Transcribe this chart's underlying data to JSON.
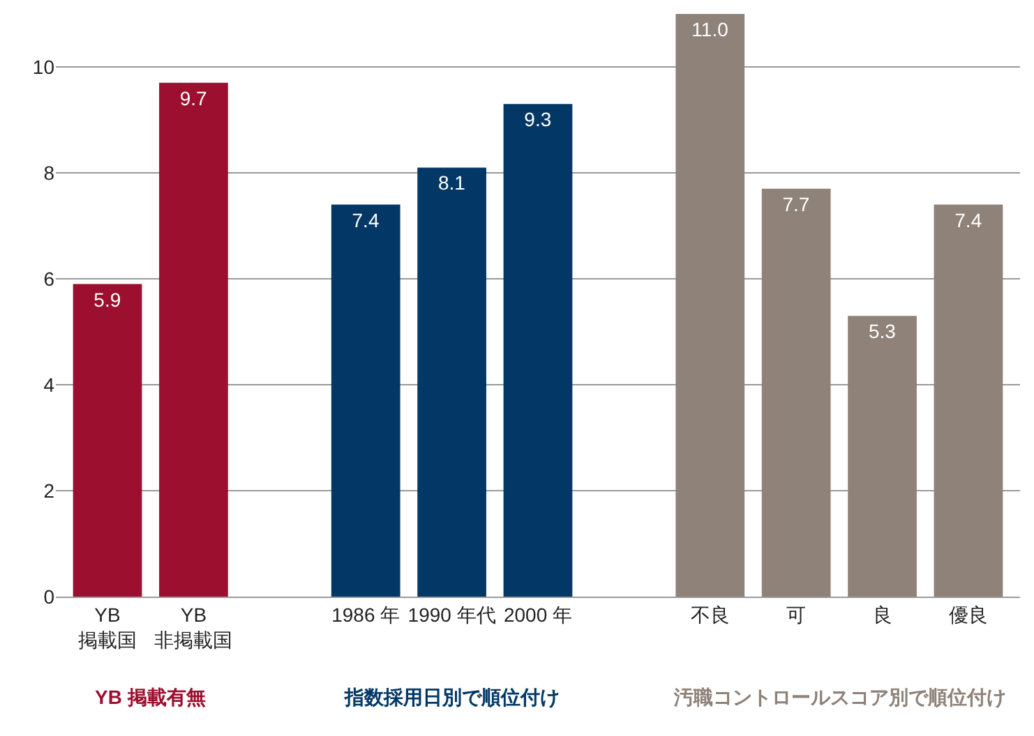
{
  "chart_data": {
    "type": "bar",
    "categories": [
      "YB\n掲載国",
      "YB\n非掲載国",
      null,
      "1986 年",
      "1990 年代",
      "2000 年",
      null,
      "不良",
      "可",
      "良",
      "優良"
    ],
    "series": [
      {
        "name": "YB 掲載有無",
        "color": "#9c0f2e",
        "values": [
          5.9,
          9.7,
          null,
          null,
          null,
          null,
          null,
          null,
          null,
          null,
          null
        ],
        "value_labels": [
          "5.9",
          "9.7",
          null,
          null,
          null,
          null,
          null,
          null,
          null,
          null,
          null
        ]
      },
      {
        "name": "指数採用日別で順位付け",
        "color": "#033866",
        "values": [
          null,
          null,
          null,
          7.4,
          8.1,
          9.3,
          null,
          null,
          null,
          null,
          null
        ],
        "value_labels": [
          null,
          null,
          null,
          "7.4",
          "8.1",
          "9.3",
          null,
          null,
          null,
          null,
          null
        ]
      },
      {
        "name": "汚職コントロールスコア別で順位付け",
        "color": "#8e8279",
        "values": [
          null,
          null,
          null,
          null,
          null,
          null,
          null,
          11.0,
          7.7,
          5.3,
          7.4
        ],
        "value_labels": [
          null,
          null,
          null,
          null,
          null,
          null,
          null,
          "11.0",
          "7.7",
          "5.3",
          "7.4"
        ]
      }
    ],
    "ylim": [
      0,
      11
    ],
    "yticks": [
      0,
      2,
      4,
      6,
      8,
      10
    ],
    "grid": "y",
    "legend": false
  }
}
